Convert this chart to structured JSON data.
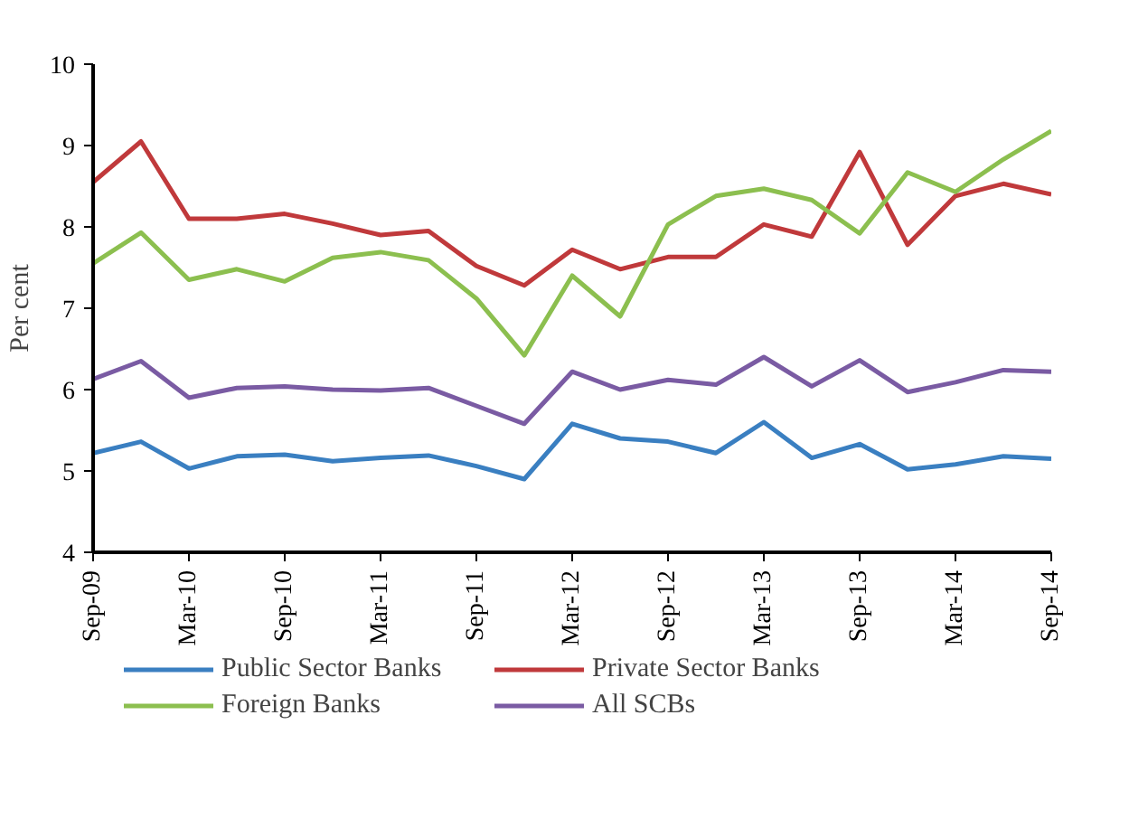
{
  "chart_data": {
    "type": "line",
    "ylabel": "Per cent",
    "categories": [
      "Sep-09",
      null,
      "Mar-10",
      null,
      "Sep-10",
      null,
      "Mar-11",
      null,
      "Sep-11",
      null,
      "Mar-12",
      null,
      "Sep-12",
      null,
      "Mar-13",
      null,
      "Sep-13",
      null,
      "Mar-14",
      null,
      "Sep-14"
    ],
    "series": [
      {
        "name": "Public Sector Banks",
        "color": "#3a7fc1",
        "values": [
          5.22,
          5.36,
          5.03,
          5.18,
          5.2,
          5.12,
          5.16,
          5.19,
          5.06,
          4.9,
          5.58,
          5.4,
          5.36,
          5.22,
          5.6,
          5.16,
          5.33,
          5.02,
          5.08,
          5.18,
          5.15
        ]
      },
      {
        "name": "Private Sector Banks",
        "color": "#c0393b",
        "values": [
          8.55,
          9.05,
          8.1,
          8.1,
          8.16,
          8.04,
          7.9,
          7.95,
          7.52,
          7.28,
          7.72,
          7.48,
          7.63,
          7.63,
          8.03,
          7.88,
          8.92,
          7.78,
          8.38,
          8.53,
          8.4
        ]
      },
      {
        "name": "Foreign Banks",
        "color": "#8cbf4f",
        "values": [
          7.55,
          7.93,
          7.35,
          7.48,
          7.33,
          7.62,
          7.69,
          7.59,
          7.12,
          6.42,
          7.4,
          6.9,
          8.03,
          8.38,
          8.47,
          8.33,
          7.92,
          8.67,
          8.43,
          8.83,
          9.18
        ]
      },
      {
        "name": "All SCBs",
        "color": "#7a5ba3",
        "values": [
          6.13,
          6.35,
          5.9,
          6.02,
          6.04,
          6.0,
          5.99,
          6.02,
          5.8,
          5.58,
          6.22,
          6.0,
          6.12,
          6.06,
          6.4,
          6.04,
          6.36,
          5.97,
          6.09,
          6.24,
          6.22
        ]
      }
    ],
    "ylim": [
      4,
      10
    ],
    "yticks": [
      4,
      5,
      6,
      7,
      8,
      9,
      10
    ],
    "grid": false,
    "legend": "bottom",
    "line_style": "solid",
    "marker": "none"
  }
}
